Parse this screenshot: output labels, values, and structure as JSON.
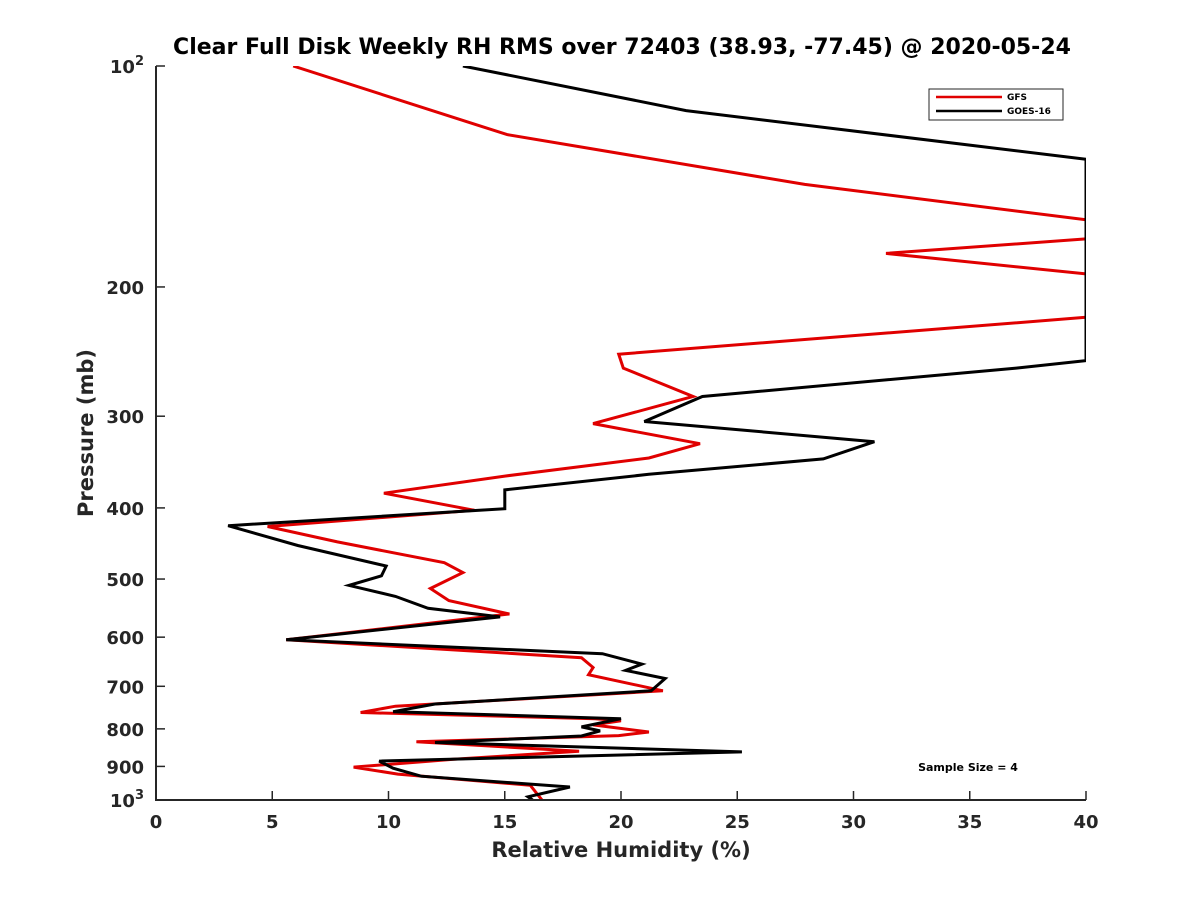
{
  "chart_data": {
    "type": "line",
    "title": "Clear Full Disk Weekly RH RMS over 72403 (38.93, -77.45) @ 2020-05-24",
    "xlabel": "Relative Humidity (%)",
    "ylabel": "Pressure (mb)",
    "xlim": [
      0,
      40
    ],
    "ylim": [
      100,
      1000
    ],
    "y_scale": "log",
    "y_direction": "reversed",
    "x_ticks": [
      "0",
      "5",
      "10",
      "15",
      "20",
      "25",
      "30",
      "35",
      "40"
    ],
    "y_ticks": [
      {
        "value": 100,
        "base": "10",
        "exp": "2"
      },
      {
        "value": 200,
        "label": "200"
      },
      {
        "value": 300,
        "label": "300"
      },
      {
        "value": 400,
        "label": "400"
      },
      {
        "value": 500,
        "label": "500"
      },
      {
        "value": 600,
        "label": "600"
      },
      {
        "value": 700,
        "label": "700"
      },
      {
        "value": 800,
        "label": "800"
      },
      {
        "value": 900,
        "label": "900"
      },
      {
        "value": 1000,
        "base": "10",
        "exp": "3"
      }
    ],
    "grid": false,
    "legend_position": "top-right",
    "annotation": "Sample Size = 4",
    "series": [
      {
        "name": "GFS",
        "color": "#e00000",
        "points": [
          [
            5.9,
            100
          ],
          [
            15.1,
            124
          ],
          [
            27.9,
            145
          ],
          [
            40.0,
            162
          ],
          [
            40.0,
            172
          ],
          [
            31.4,
            180
          ],
          [
            40.0,
            192
          ],
          [
            40.0,
            220
          ],
          [
            19.9,
            247
          ],
          [
            20.1,
            258
          ],
          [
            23.1,
            282
          ],
          [
            18.8,
            307
          ],
          [
            23.4,
            327
          ],
          [
            21.2,
            342
          ],
          [
            15.0,
            362
          ],
          [
            9.8,
            382
          ],
          [
            13.7,
            403
          ],
          [
            4.8,
            424
          ],
          [
            7.8,
            445
          ],
          [
            12.4,
            475
          ],
          [
            13.2,
            490
          ],
          [
            11.8,
            515
          ],
          [
            12.6,
            535
          ],
          [
            15.2,
            558
          ],
          [
            5.6,
            605
          ],
          [
            18.3,
            640
          ],
          [
            18.8,
            660
          ],
          [
            18.6,
            675
          ],
          [
            21.8,
            710
          ],
          [
            10.3,
            745
          ],
          [
            8.8,
            760
          ],
          [
            18.9,
            775
          ],
          [
            20.0,
            780
          ],
          [
            18.8,
            790
          ],
          [
            21.2,
            808
          ],
          [
            19.9,
            817
          ],
          [
            11.2,
            833
          ],
          [
            18.2,
            858
          ],
          [
            12.8,
            880
          ],
          [
            8.5,
            902
          ],
          [
            10.4,
            922
          ],
          [
            16.1,
            955
          ],
          [
            16.6,
            1000
          ]
        ]
      },
      {
        "name": "GOES-16",
        "color": "#000000",
        "points": [
          [
            13.2,
            100
          ],
          [
            22.8,
            115
          ],
          [
            40.0,
            134
          ],
          [
            40.0,
            252
          ],
          [
            37.0,
            258
          ],
          [
            23.5,
            282
          ],
          [
            21.0,
            305
          ],
          [
            30.9,
            325
          ],
          [
            28.7,
            343
          ],
          [
            21.2,
            360
          ],
          [
            15.0,
            378
          ],
          [
            15.0,
            401
          ],
          [
            3.1,
            423
          ],
          [
            6.1,
            450
          ],
          [
            9.9,
            480
          ],
          [
            9.7,
            495
          ],
          [
            8.3,
            510
          ],
          [
            10.3,
            528
          ],
          [
            11.7,
            548
          ],
          [
            14.8,
            563
          ],
          [
            5.6,
            605
          ],
          [
            19.2,
            632
          ],
          [
            20.9,
            653
          ],
          [
            20.2,
            666
          ],
          [
            21.9,
            683
          ],
          [
            21.3,
            710
          ],
          [
            12.0,
            740
          ],
          [
            10.2,
            758
          ],
          [
            20.0,
            775
          ],
          [
            18.3,
            795
          ],
          [
            19.1,
            805
          ],
          [
            18.3,
            818
          ],
          [
            12.0,
            835
          ],
          [
            25.2,
            860
          ],
          [
            9.6,
            885
          ],
          [
            10.2,
            905
          ],
          [
            11.4,
            928
          ],
          [
            17.8,
            960
          ],
          [
            16.0,
            990
          ],
          [
            16.2,
            1000
          ]
        ]
      }
    ]
  }
}
